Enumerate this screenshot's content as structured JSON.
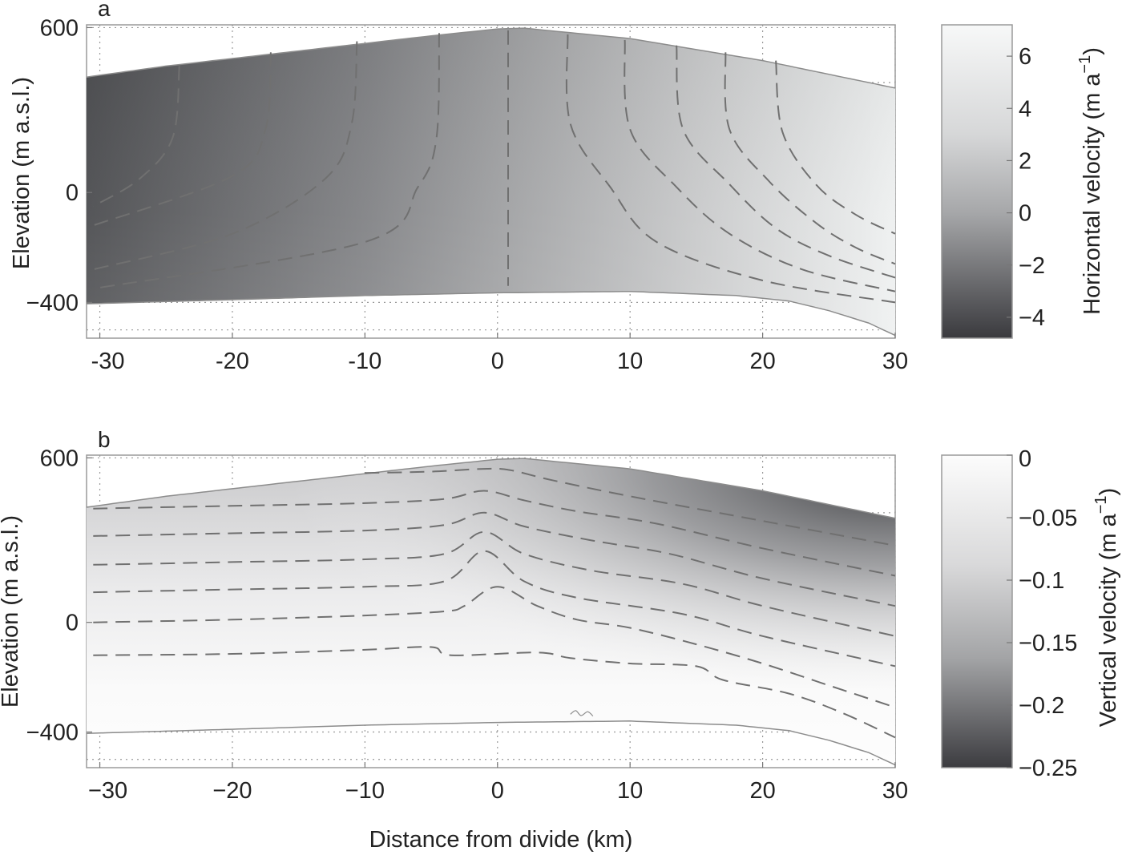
{
  "figure": {
    "xlabel": "Distance from divide (km)"
  },
  "chart_data": [
    {
      "type": "contour",
      "panel": "a",
      "ylabel": "Elevation (m a.s.l.)",
      "xlim": [
        -31,
        30
      ],
      "ylim": [
        -530,
        610
      ],
      "x_ticks": [
        -30,
        -20,
        -10,
        0,
        10,
        20,
        30
      ],
      "x_tick_labels": [
        "-30",
        "-20",
        "-10",
        "0",
        "10",
        "20",
        "30"
      ],
      "y_ticks": [
        600,
        0,
        -400
      ],
      "y_tick_labels": [
        "600",
        "0",
        "−400"
      ],
      "grid": "dotted",
      "surface": {
        "x": [
          -31,
          -25,
          -15,
          -5,
          0,
          2,
          10,
          20,
          30
        ],
        "elev": [
          420,
          460,
          515,
          570,
          595,
          598,
          560,
          480,
          380
        ]
      },
      "bed": {
        "x": [
          -31,
          -20,
          -10,
          0,
          10,
          18,
          22,
          25,
          28,
          30
        ],
        "elev": [
          -405,
          -390,
          -375,
          -365,
          -360,
          -375,
          -395,
          -430,
          -475,
          -520
        ]
      },
      "colorbar": {
        "label": "Horizontal velocity (m a",
        "label_sup": "−1",
        "label_close": ")",
        "range": [
          -4.8,
          7.2
        ],
        "ticks": [
          6,
          4,
          2,
          0,
          -2,
          -4
        ],
        "tick_labels": [
          "6",
          "4",
          "2",
          "0",
          "−2",
          "−4"
        ],
        "colormap": [
          "#3c3c40",
          "#cfd0d2",
          "#f7f8f8"
        ]
      },
      "field_colors": {
        "left": "#58595c",
        "center": "#9fa0a2",
        "right": "#eef0f0"
      },
      "contours": [
        {
          "x": [
            0.8,
            0.8,
            0.8
          ],
          "elev": [
            590,
            100,
            -340
          ]
        },
        {
          "x": [
            -4.4,
            -4.6,
            -6.0,
            -10.0,
            -30.5
          ],
          "elev": [
            580,
            200,
            20,
            -180,
            -350
          ]
        },
        {
          "x": [
            -10.6,
            -11.0,
            -13.0,
            -20.0,
            -30.5
          ],
          "elev": [
            550,
            250,
            50,
            -150,
            -280
          ]
        },
        {
          "x": [
            -17.1,
            -17.5,
            -20.0,
            -30.5
          ],
          "elev": [
            510,
            230,
            60,
            -120
          ]
        },
        {
          "x": [
            -24.0,
            -24.5,
            -27.0,
            -30.5
          ],
          "elev": [
            460,
            200,
            50,
            -50
          ]
        },
        {
          "x": [
            5.3,
            5.5,
            8.5,
            12.0,
            20.0,
            30.0
          ],
          "elev": [
            575,
            250,
            20,
            -180,
            -320,
            -400
          ]
        },
        {
          "x": [
            9.6,
            10.0,
            13.5,
            17.5,
            23.0,
            30.0
          ],
          "elev": [
            555,
            230,
            20,
            -150,
            -280,
            -360
          ]
        },
        {
          "x": [
            13.5,
            14.0,
            17.5,
            21.0,
            25.0,
            30.0
          ],
          "elev": [
            535,
            230,
            30,
            -130,
            -230,
            -310
          ]
        },
        {
          "x": [
            17.2,
            17.5,
            20.5,
            24.0,
            27.0,
            30.0
          ],
          "elev": [
            510,
            230,
            40,
            -110,
            -200,
            -260
          ]
        },
        {
          "x": [
            21.0,
            21.5,
            24.0,
            27.0,
            30.0
          ],
          "elev": [
            480,
            220,
            30,
            -80,
            -150
          ]
        }
      ]
    },
    {
      "type": "contour",
      "panel": "b",
      "ylabel": "Elevation (m a.s.l.)",
      "xlim": [
        -31,
        30
      ],
      "ylim": [
        -530,
        610
      ],
      "x_ticks": [
        -30,
        -20,
        -10,
        0,
        10,
        20,
        30
      ],
      "x_tick_labels": [
        "−30",
        "−20",
        "−10",
        "0",
        "10",
        "20",
        "30"
      ],
      "y_ticks": [
        600,
        0,
        -400
      ],
      "y_tick_labels": [
        "600",
        "0",
        "−400"
      ],
      "grid": "dotted",
      "surface": {
        "x": [
          -31,
          -25,
          -15,
          -5,
          0,
          2,
          10,
          20,
          30
        ],
        "elev": [
          420,
          460,
          515,
          570,
          595,
          598,
          560,
          480,
          380
        ]
      },
      "bed": {
        "x": [
          -31,
          -20,
          -10,
          0,
          10,
          18,
          22,
          25,
          28,
          30
        ],
        "elev": [
          -405,
          -390,
          -375,
          -365,
          -360,
          -375,
          -395,
          -430,
          -475,
          -520
        ]
      },
      "colorbar": {
        "label": "Vertical velocity (m a",
        "label_sup": "−1",
        "label_close": ")",
        "range": [
          -0.25,
          0
        ],
        "ticks": [
          0,
          -0.05,
          -0.1,
          -0.15,
          -0.2,
          -0.25
        ],
        "tick_labels": [
          "0",
          "−0.05",
          "−0.1",
          "−0.15",
          "−0.2",
          "−0.25"
        ],
        "colormap": [
          "#3f3f43",
          "#cfd0d2",
          "#fcfcfc"
        ]
      },
      "field_colors": {
        "top_right": "#4a4b4e",
        "mid": "#dcdcdd",
        "bottom": "#fbfbfb"
      },
      "contours": [
        {
          "x": [
            -10,
            -5,
            -1,
            1,
            4,
            10,
            20,
            30
          ],
          "elev": [
            545,
            550,
            560,
            555,
            520,
            460,
            370,
            280
          ]
        },
        {
          "x": [
            -30.5,
            -20,
            -10,
            -4,
            -1,
            2,
            6,
            12,
            20,
            30
          ],
          "elev": [
            415,
            425,
            435,
            450,
            480,
            445,
            405,
            360,
            270,
            170
          ]
        },
        {
          "x": [
            -30.5,
            -20,
            -10,
            -4,
            -1,
            2,
            7,
            13,
            20,
            30
          ],
          "elev": [
            315,
            325,
            335,
            355,
            400,
            350,
            300,
            250,
            160,
            60
          ]
        },
        {
          "x": [
            -30.5,
            -20,
            -10,
            -4,
            -1,
            2,
            7,
            14,
            20,
            30
          ],
          "elev": [
            210,
            220,
            230,
            250,
            330,
            250,
            190,
            140,
            60,
            -50
          ]
        },
        {
          "x": [
            -30.5,
            -20,
            -10,
            -4,
            -1,
            2,
            6,
            14,
            20,
            30
          ],
          "elev": [
            110,
            120,
            130,
            150,
            260,
            150,
            90,
            30,
            -50,
            -160
          ]
        },
        {
          "x": [
            -30.5,
            -20,
            -10,
            -4,
            -2.5,
            0,
            3,
            6,
            10,
            15,
            20,
            25,
            30
          ],
          "elev": [
            0,
            10,
            25,
            40,
            60,
            130,
            60,
            10,
            -20,
            -80,
            -150,
            -230,
            -310
          ]
        },
        {
          "x": [
            -30.5,
            -20,
            -10,
            -5,
            -3.5,
            3,
            5.5,
            10,
            15,
            17,
            22,
            26,
            30
          ],
          "elev": [
            -120,
            -115,
            -100,
            -90,
            -120,
            -110,
            -130,
            -150,
            -160,
            -210,
            -260,
            -330,
            -420
          ]
        }
      ],
      "bed_annotation": {
        "x": [
          5.5,
          5.9,
          6.3,
          6.8,
          7.2
        ],
        "elev": [
          -335,
          -322,
          -340,
          -326,
          -342
        ]
      }
    }
  ]
}
